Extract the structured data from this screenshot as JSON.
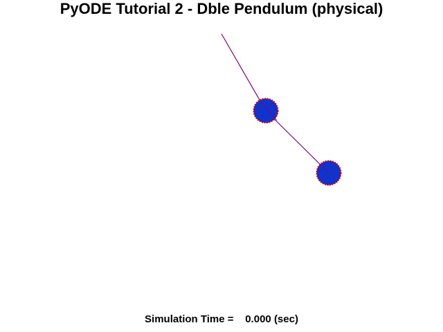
{
  "window": {
    "title": "PyODE Tutorial 2 - Dble Pendulum (physical)"
  },
  "scene": {
    "background_color": "#ffffff",
    "rod_color": "#7a007a",
    "bob_fill_color": "#1133cc",
    "bob_outline_color": "#cc0000"
  },
  "status": {
    "label": "Simulation Time =",
    "value": "0.000",
    "unit": "(sec)"
  }
}
